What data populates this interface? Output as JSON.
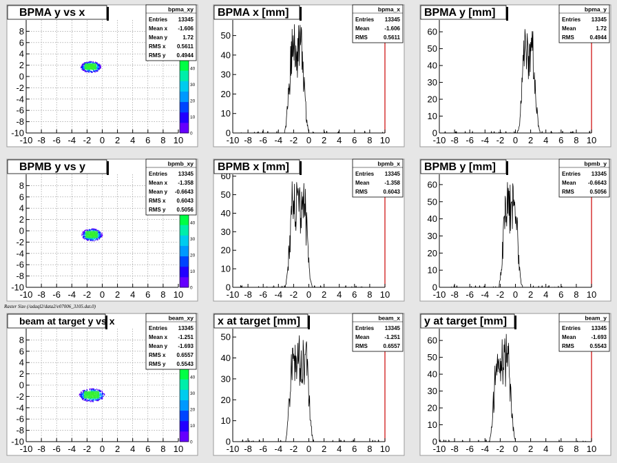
{
  "footer": "Raster Size (/adaql2/data2/e07006_3105.dat.0)",
  "colors": {
    "pad_bg": "#ffffff",
    "frame": "#9a9a9a",
    "axis": "#000000",
    "hist_line": "#000000",
    "right_axis": "#cc0000"
  },
  "stat_labels": {
    "entries": "Entries",
    "mean": "Mean",
    "mean_x": "Mean x",
    "mean_y": "Mean y",
    "rms": "RMS",
    "rms_x": "RMS x",
    "rms_y": "RMS y"
  },
  "chart_data": [
    {
      "name": "bpma_xy",
      "type": "heatmap",
      "title": "BPMA y vs x",
      "xlim": [
        -10,
        10
      ],
      "ylim": [
        -10,
        10
      ],
      "x_ticks": [
        -10,
        -8,
        -6,
        -4,
        -2,
        0,
        2,
        4,
        6,
        8,
        10
      ],
      "y_ticks": [
        -10,
        -8,
        -6,
        -4,
        -2,
        0,
        2,
        4,
        6,
        8
      ],
      "stats": {
        "entries": "13345",
        "mean_x": "-1.606",
        "mean_y": "1.72",
        "rms_x": "0.5611",
        "rms_y": "0.4944"
      },
      "blob": {
        "x_range": [
          -2.8,
          -0.3
        ],
        "y_range": [
          0.8,
          2.7
        ]
      },
      "palette_ticks": [
        0,
        10,
        20,
        30,
        40
      ],
      "grid": true
    },
    {
      "name": "bpma_x",
      "type": "bar",
      "title": "BPMA x [mm]",
      "xlim": [
        -10,
        10
      ],
      "ylim": [
        0,
        58
      ],
      "x_ticks": [
        -10,
        -8,
        -6,
        -4,
        -2,
        0,
        2,
        4,
        6,
        8,
        10
      ],
      "y_ticks": [
        0,
        10,
        20,
        30,
        40,
        50
      ],
      "stats": {
        "entries": "13345",
        "mean": "-1.606",
        "rms": "0.5611"
      },
      "peak": {
        "center": -1.6,
        "plateau": [
          -2.4,
          -0.8
        ],
        "max": 56
      },
      "grid": false
    },
    {
      "name": "bpma_y",
      "type": "bar",
      "title": "BPMA y [mm]",
      "xlim": [
        -10,
        10
      ],
      "ylim": [
        0,
        67
      ],
      "x_ticks": [
        -10,
        -8,
        -6,
        -4,
        -2,
        0,
        2,
        4,
        6,
        8,
        10
      ],
      "y_ticks": [
        0,
        10,
        20,
        30,
        40,
        50,
        60
      ],
      "stats": {
        "entries": "13345",
        "mean": "1.72",
        "rms": "0.4944"
      },
      "peak": {
        "center": 1.7,
        "plateau": [
          1.1,
          2.4
        ],
        "max": 63
      },
      "grid": false
    },
    {
      "name": "bpmb_xy",
      "type": "heatmap",
      "title": "BPMB y vs y",
      "xlim": [
        -10,
        10
      ],
      "ylim": [
        -10,
        10
      ],
      "x_ticks": [
        -10,
        -8,
        -6,
        -4,
        -2,
        0,
        2,
        4,
        6,
        8,
        10
      ],
      "y_ticks": [
        -10,
        -8,
        -6,
        -4,
        -2,
        0,
        2,
        4,
        6,
        8
      ],
      "stats": {
        "entries": "13345",
        "mean_x": "-1.358",
        "mean_y": "-0.6643",
        "rms_x": "0.6043",
        "rms_y": "0.5056"
      },
      "blob": {
        "x_range": [
          -2.7,
          -0.1
        ],
        "y_range": [
          -1.7,
          0.4
        ]
      },
      "palette_ticks": [
        0,
        10,
        20,
        30,
        40
      ],
      "grid": true
    },
    {
      "name": "bpmb_x",
      "type": "bar",
      "title": "BPMB x [mm]",
      "xlim": [
        -10,
        10
      ],
      "ylim": [
        0,
        61
      ],
      "x_ticks": [
        -10,
        -8,
        -6,
        -4,
        -2,
        0,
        2,
        4,
        6,
        8,
        10
      ],
      "y_ticks": [
        0,
        10,
        20,
        30,
        40,
        50,
        60
      ],
      "stats": {
        "entries": "13345",
        "mean": "-1.358",
        "rms": "0.6043"
      },
      "peak": {
        "center": -1.35,
        "plateau": [
          -2.3,
          -0.4
        ],
        "max": 58
      },
      "grid": false
    },
    {
      "name": "bpmb_y",
      "type": "bar",
      "title": "BPMB y [mm]",
      "xlim": [
        -10,
        10
      ],
      "ylim": [
        0,
        66
      ],
      "x_ticks": [
        -10,
        -8,
        -6,
        -4,
        -2,
        0,
        2,
        4,
        6,
        8,
        10
      ],
      "y_ticks": [
        0,
        10,
        20,
        30,
        40,
        50,
        60
      ],
      "stats": {
        "entries": "13345",
        "mean": "-0.6643",
        "rms": "0.5056"
      },
      "peak": {
        "center": -0.66,
        "plateau": [
          -1.4,
          0.1
        ],
        "max": 62
      },
      "grid": false
    },
    {
      "name": "beam_xy",
      "type": "heatmap",
      "title": "beam at target y vs x",
      "xlim": [
        -10,
        10
      ],
      "ylim": [
        -10,
        10
      ],
      "x_ticks": [
        -10,
        -8,
        -6,
        -4,
        -2,
        0,
        2,
        4,
        6,
        8,
        10
      ],
      "y_ticks": [
        -10,
        -8,
        -6,
        -4,
        -2,
        0,
        2,
        4,
        6,
        8
      ],
      "stats": {
        "entries": "13345",
        "mean_x": "-1.251",
        "mean_y": "-1.693",
        "rms_x": "0.6557",
        "rms_y": "0.5543"
      },
      "blob": {
        "x_range": [
          -3.0,
          0.2
        ],
        "y_range": [
          -2.8,
          -0.6
        ]
      },
      "palette_ticks": [
        0,
        10,
        20,
        30,
        40
      ],
      "grid": true
    },
    {
      "name": "beam_x",
      "type": "bar",
      "title": "x at target [mm]",
      "xlim": [
        -10,
        10
      ],
      "ylim": [
        0,
        54
      ],
      "x_ticks": [
        -10,
        -8,
        -6,
        -4,
        -2,
        0,
        2,
        4,
        6,
        8,
        10
      ],
      "y_ticks": [
        0,
        10,
        20,
        30,
        40,
        50
      ],
      "stats": {
        "entries": "13345",
        "mean": "-1.251",
        "rms": "0.6557"
      },
      "peak": {
        "center": -1.25,
        "plateau": [
          -2.3,
          -0.2
        ],
        "max": 51
      },
      "grid": false
    },
    {
      "name": "beam_y",
      "type": "bar",
      "title": "y at target [mm]",
      "xlim": [
        -10,
        10
      ],
      "ylim": [
        0,
        67
      ],
      "x_ticks": [
        -10,
        -8,
        -6,
        -4,
        -2,
        0,
        2,
        4,
        6,
        8,
        10
      ],
      "y_ticks": [
        0,
        10,
        20,
        30,
        40,
        50,
        60
      ],
      "stats": {
        "entries": "13345",
        "mean": "-1.693",
        "rms": "0.5543"
      },
      "peak": {
        "center": -1.69,
        "plateau": [
          -2.6,
          -0.8
        ],
        "max": 64
      },
      "grid": false
    }
  ]
}
